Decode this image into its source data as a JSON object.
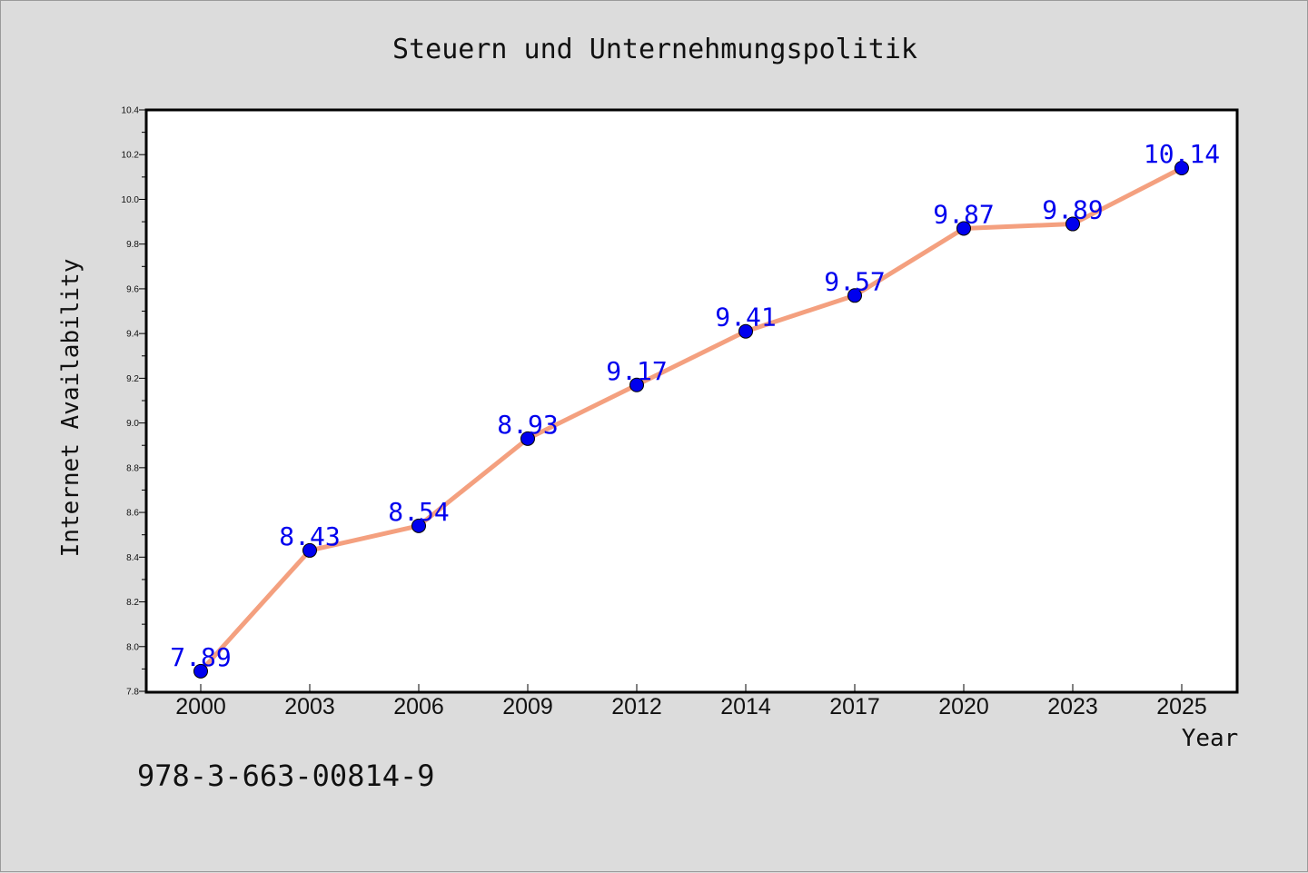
{
  "chart_data": {
    "type": "line",
    "title": "Steuern und Unternehmungspolitik",
    "xlabel": "Year",
    "ylabel": "Internet Availability",
    "categories": [
      "2000",
      "2003",
      "2006",
      "2009",
      "2012",
      "2014",
      "2017",
      "2020",
      "2023",
      "2025"
    ],
    "series": [
      {
        "values": [
          7.89,
          8.43,
          8.54,
          8.93,
          9.17,
          9.41,
          9.57,
          9.87,
          9.89,
          10.14
        ]
      }
    ],
    "data_labels": [
      "7.89",
      "8.43",
      "8.54",
      "8.93",
      "9.17",
      "9.41",
      "9.57",
      "9.87",
      "9.89",
      "10.14"
    ],
    "ylim": [
      7.8,
      10.4
    ],
    "yticks": [
      "7.8",
      "8.0",
      "8.2",
      "8.4",
      "8.6",
      "8.8",
      "9.0",
      "9.2",
      "9.4",
      "9.6",
      "9.8",
      "10.0",
      "10.2",
      "10.4"
    ],
    "grid": false,
    "colors": {
      "line": "#f4a07f",
      "marker": "#0000ee",
      "data_label": "#0000ee"
    }
  },
  "footer": {
    "isbn": "978-3-663-00814-9"
  }
}
